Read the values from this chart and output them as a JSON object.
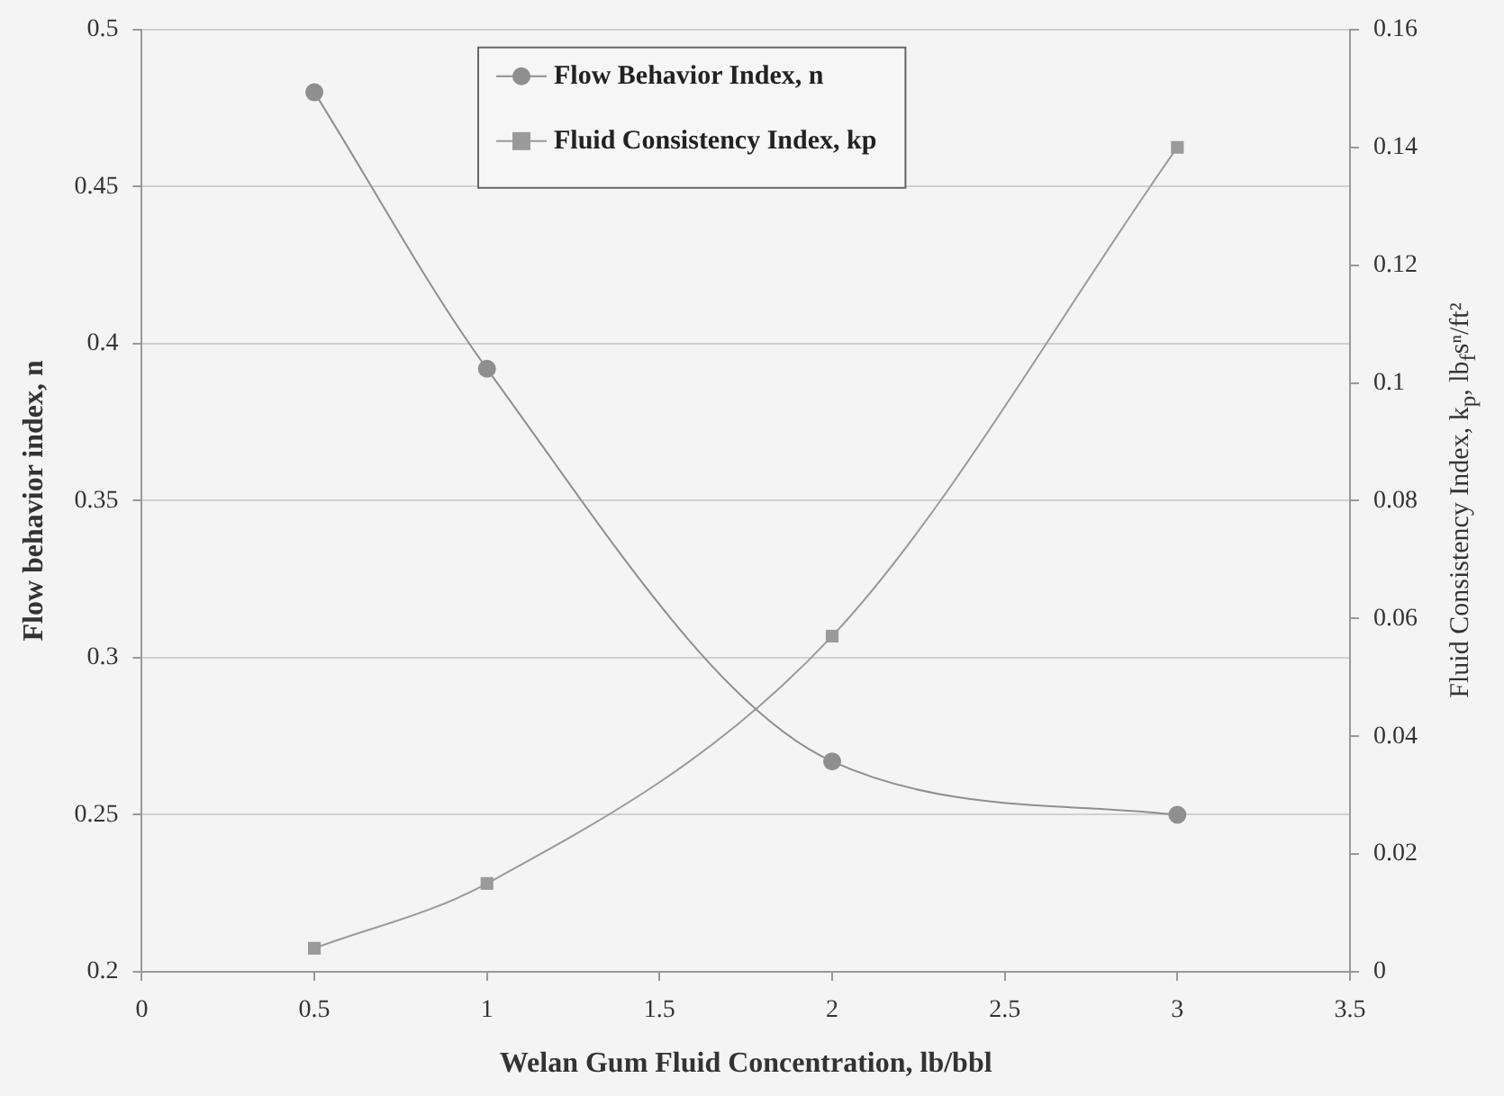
{
  "chart_data": {
    "type": "line",
    "xlabel": "Welan Gum Fluid Concentration, lb/bbl",
    "ylabel": "Flow behavior index, n",
    "y2label": "Fluid Consistency Index, k$_{p}$, lb$_{f}$sⁿ/ft²",
    "x": [
      0.5,
      1,
      2,
      3
    ],
    "series": [
      {
        "name": "Flow Behavior Index, n",
        "color": "#8f8f8f",
        "values": [
          0.48,
          0.392,
          0.267,
          0.25
        ],
        "marker": "circle"
      },
      {
        "name": "Fluid Consistency Index, kp",
        "color": "#9a9a9a",
        "values": [
          0.004,
          0.015,
          0.057,
          0.14
        ],
        "marker": "square",
        "axis": "y2"
      }
    ],
    "xlim": [
      0,
      3.5
    ],
    "xticks": [
      0,
      0.5,
      1,
      1.5,
      2,
      2.5,
      3,
      3.5
    ],
    "ylim": [
      0.2,
      0.5
    ],
    "yticks": [
      0.2,
      0.25,
      0.3,
      0.35,
      0.4,
      0.45,
      0.5
    ],
    "y2lim": [
      0,
      0.16
    ],
    "y2ticks": [
      0,
      0.02,
      0.04,
      0.06,
      0.08,
      0.1,
      0.12,
      0.14,
      0.16
    ],
    "grid": "y",
    "legend": "top",
    "line_style": "solid"
  }
}
